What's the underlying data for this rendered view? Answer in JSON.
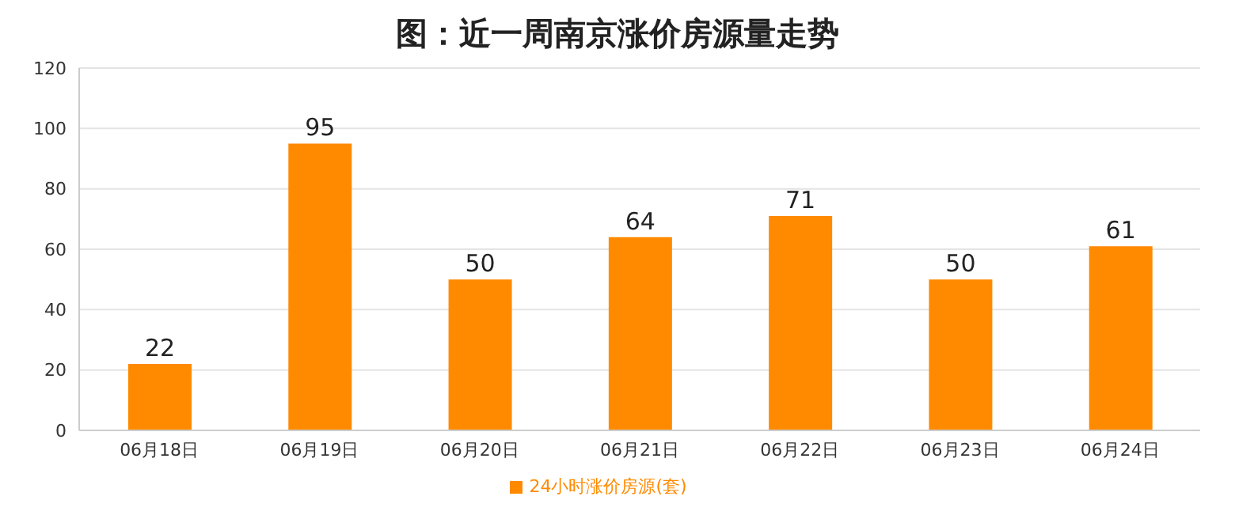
{
  "chart_data": {
    "type": "bar",
    "title": "图：近一周南京涨价房源量走势",
    "categories": [
      "06月18日",
      "06月19日",
      "06月20日",
      "06月21日",
      "06月22日",
      "06月23日",
      "06月24日"
    ],
    "series": [
      {
        "name": "24小时涨价房源(套)",
        "color": "#ff8a00",
        "values": [
          22,
          95,
          50,
          64,
          71,
          50,
          61
        ]
      }
    ],
    "ylim": [
      0,
      120
    ],
    "yticks": [
      0,
      20,
      40,
      60,
      80,
      100,
      120
    ],
    "grid": "y",
    "legend": "bottom",
    "data_labels": true
  }
}
